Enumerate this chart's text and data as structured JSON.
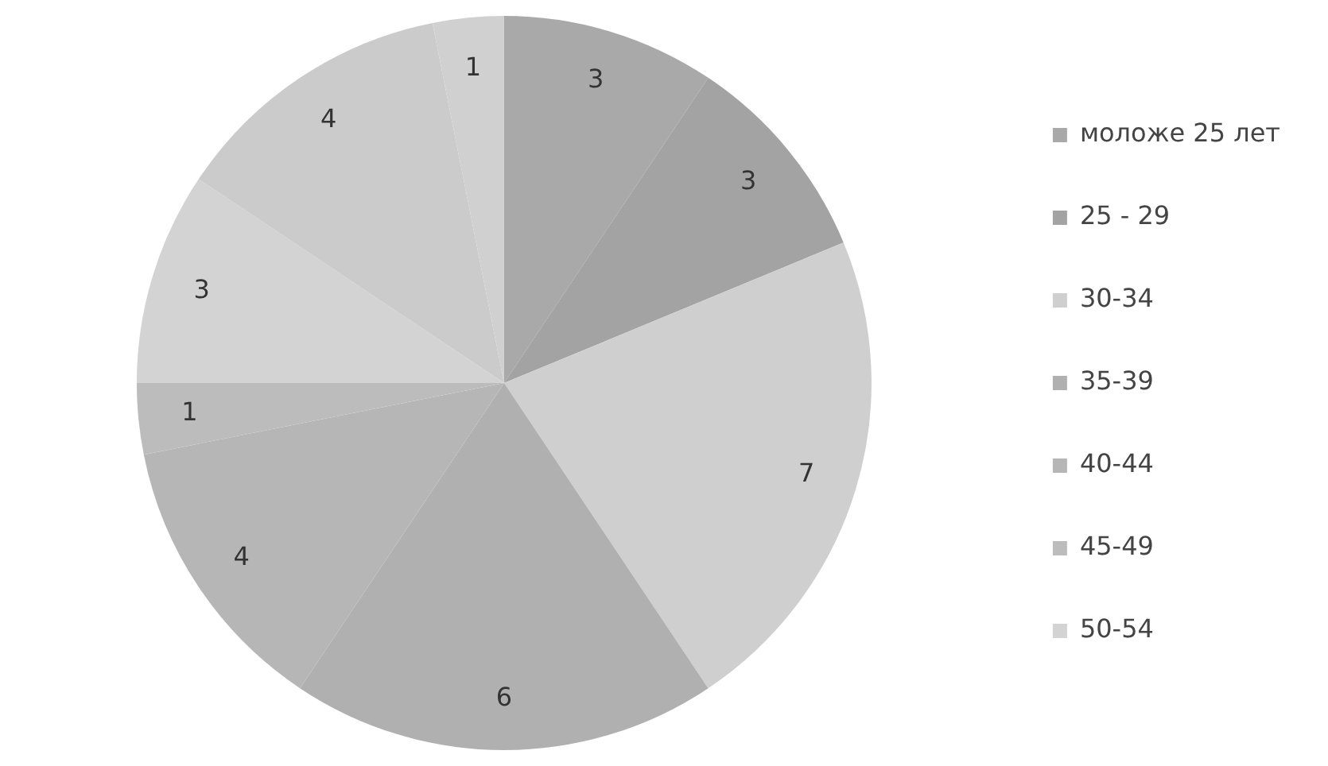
{
  "chart_data": {
    "type": "pie",
    "categories": [
      "моложе 25 лет",
      "25 - 29",
      "30-34",
      "35-39",
      "40-44",
      "45-49",
      "50-54",
      null,
      null
    ],
    "values": [
      3,
      3,
      7,
      6,
      4,
      1,
      3,
      4,
      1
    ],
    "colors": [
      "#a9a9a9",
      "#a3a3a3",
      "#cfcfcf",
      "#b0b0b0",
      "#b6b6b6",
      "#bcbcbc",
      "#d3d3d3",
      "#cbcbcb",
      "#d0d0d0"
    ],
    "data_labels": true,
    "legend": "right"
  }
}
